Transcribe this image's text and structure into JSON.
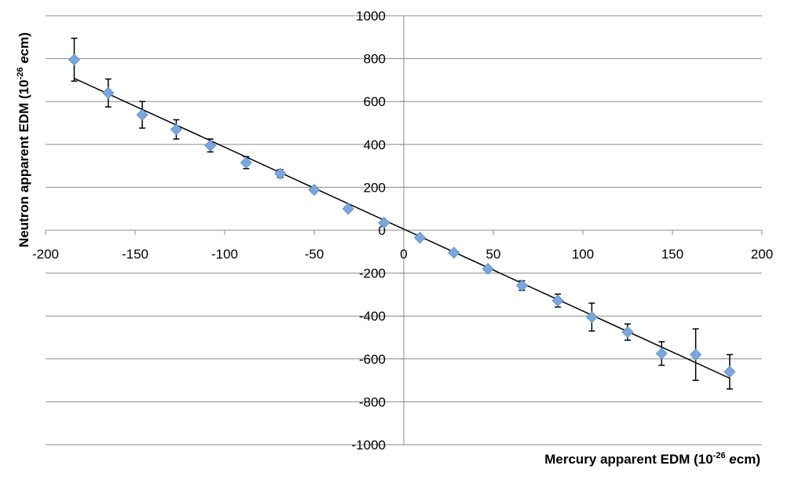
{
  "chart_data": {
    "type": "scatter",
    "xlabel": "Mercury apparent EDM (10",
    "xlabel_sup": "-26",
    "xlabel_italic": " e",
    "xlabel_end": "cm)",
    "ylabel": "Neutron apparent EDM (10",
    "ylabel_sup": "-26",
    "ylabel_italic": " e",
    "ylabel_end": "cm)",
    "xlim": [
      -200,
      200
    ],
    "ylim": [
      -1000,
      1000
    ],
    "x_ticks": [
      "-200",
      "-150",
      "-100",
      "-50",
      "0",
      "50",
      "100",
      "150",
      "200"
    ],
    "y_ticks": [
      "-1000",
      "-800",
      "-600",
      "-400",
      "-200",
      "0",
      "200",
      "400",
      "600",
      "800",
      "1000"
    ],
    "grid": "horizontal",
    "legend": "none",
    "marker_color": "#7ba7de",
    "series": [
      {
        "points": [
          {
            "x": -184,
            "y": 795,
            "err": 100
          },
          {
            "x": -165,
            "y": 640,
            "err": 65
          },
          {
            "x": -146,
            "y": 538,
            "err": 62
          },
          {
            "x": -127,
            "y": 470,
            "err": 45
          },
          {
            "x": -108,
            "y": 395,
            "err": 30
          },
          {
            "x": -88,
            "y": 315,
            "err": 28
          },
          {
            "x": -69,
            "y": 264,
            "err": 18
          },
          {
            "x": -50,
            "y": 188,
            "err": 10
          },
          {
            "x": -31,
            "y": 100,
            "err": 10
          },
          {
            "x": -11,
            "y": 35,
            "err": 8
          },
          {
            "x": 9,
            "y": -35,
            "err": 8
          },
          {
            "x": 28,
            "y": -105,
            "err": 10
          },
          {
            "x": 47,
            "y": -180,
            "err": 12
          },
          {
            "x": 66,
            "y": -258,
            "err": 22
          },
          {
            "x": 86,
            "y": -328,
            "err": 30
          },
          {
            "x": 105,
            "y": -405,
            "err": 65
          },
          {
            "x": 125,
            "y": -475,
            "err": 38
          },
          {
            "x": 144,
            "y": -575,
            "err": 55
          },
          {
            "x": 163,
            "y": -580,
            "err": 120
          },
          {
            "x": 182,
            "y": -660,
            "err": 80
          }
        ]
      }
    ],
    "fit_line": {
      "x": [
        -184,
        182
      ],
      "y": [
        708,
        -690
      ]
    }
  }
}
